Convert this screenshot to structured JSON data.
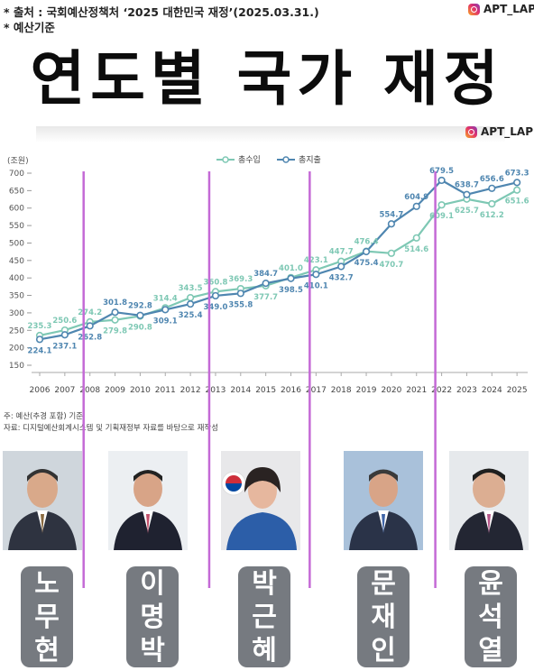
{
  "header": {
    "source_line": "* 출처 : 국회예산정책처 ‘2025 대한민국 재정’(2025.03.31.)",
    "basis_line": "* 예산기준",
    "handle": "APT_LAP",
    "title": "연도별 국가 재정"
  },
  "notes": {
    "line1": "주: 예산(추경 포함) 기준",
    "line2": "자료: 디지털예산회계시스템 및 기획재정부 자료를 바탕으로 재작성"
  },
  "chart_data": {
    "type": "line",
    "ylabel": "(조원)",
    "ylim": [
      150,
      700
    ],
    "yticks": [
      150,
      200,
      250,
      300,
      350,
      400,
      450,
      500,
      550,
      600,
      650,
      700
    ],
    "x": [
      "2006",
      "2007",
      "2008",
      "2009",
      "2010",
      "2011",
      "2012",
      "2013",
      "2014",
      "2015",
      "2016",
      "2017",
      "2018",
      "2019",
      "2020",
      "2021",
      "2022",
      "2023",
      "2024",
      "2025"
    ],
    "series": [
      {
        "name": "총수입",
        "color": "#7ec8b4",
        "values": [
          235.3,
          250.6,
          274.2,
          279.8,
          290.8,
          314.4,
          343.5,
          360.8,
          369.3,
          377.7,
          401.0,
          423.1,
          447.7,
          476.4,
          470.7,
          514.6,
          609.1,
          625.7,
          612.2,
          651.6
        ]
      },
      {
        "name": "총지출",
        "color": "#4f86b0",
        "values": [
          224.1,
          237.1,
          262.8,
          301.8,
          292.8,
          309.1,
          325.4,
          349.0,
          355.8,
          384.7,
          398.5,
          410.1,
          432.7,
          475.4,
          554.7,
          604.9,
          679.5,
          638.7,
          656.6,
          673.3
        ]
      }
    ],
    "grid": false,
    "legend": "top-center",
    "administration_dividers": [
      "2008",
      "2013",
      "2017",
      "2022"
    ],
    "divider_color": "#c46ad6"
  },
  "presidents": [
    {
      "name_chars": [
        "노",
        "무",
        "현"
      ],
      "icon": "portrait-roh"
    },
    {
      "name_chars": [
        "이",
        "명",
        "박"
      ],
      "icon": "portrait-lee"
    },
    {
      "name_chars": [
        "박",
        "근",
        "혜"
      ],
      "icon": "portrait-park"
    },
    {
      "name_chars": [
        "문",
        "재",
        "인"
      ],
      "icon": "portrait-moon"
    },
    {
      "name_chars": [
        "윤",
        "석",
        "열"
      ],
      "icon": "portrait-yoon"
    }
  ]
}
